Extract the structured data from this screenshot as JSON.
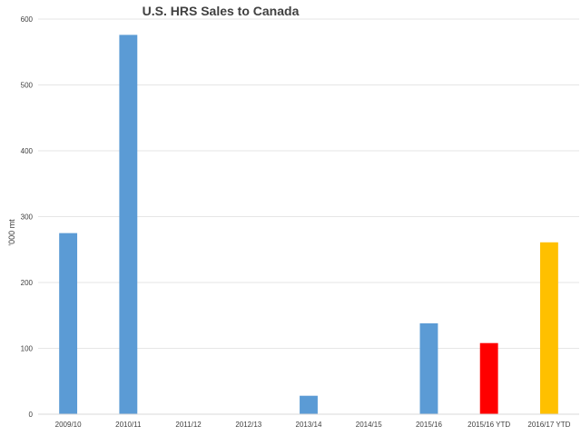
{
  "chart_data": {
    "type": "bar",
    "title": "U.S. HRS Sales to Canada",
    "xlabel": "",
    "ylabel": "'000 mt",
    "ylim": [
      0,
      600
    ],
    "yticks": [
      0,
      100,
      200,
      300,
      400,
      500,
      600
    ],
    "grid": true,
    "legend": "none",
    "categories": [
      "2009/10",
      "2010/11",
      "2011/12",
      "2012/13",
      "2013/14",
      "2014/15",
      "2015/16",
      "2015/16 YTD",
      "2016/17 YTD"
    ],
    "values": [
      275,
      576,
      0,
      0,
      28,
      0,
      138,
      108,
      261
    ],
    "colors": [
      "#5b9bd5",
      "#5b9bd5",
      "#5b9bd5",
      "#5b9bd5",
      "#5b9bd5",
      "#5b9bd5",
      "#5b9bd5",
      "#ff0000",
      "#ffc000"
    ]
  }
}
